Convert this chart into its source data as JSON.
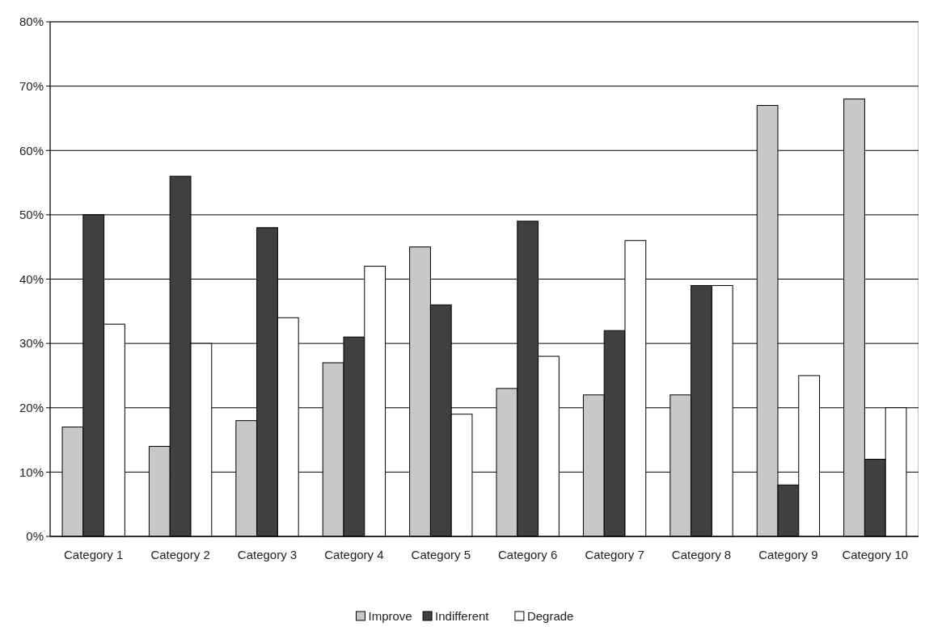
{
  "chart_data": {
    "type": "bar",
    "categories": [
      "Category 1",
      "Category 2",
      "Category 3",
      "Category 4",
      "Category 5",
      "Category 6",
      "Category 7",
      "Category 8",
      "Category 9",
      "Category 10"
    ],
    "series": [
      {
        "name": "Improve",
        "color": "#c8c8c8",
        "values": [
          17,
          14,
          18,
          27,
          45,
          23,
          22,
          22,
          67,
          68
        ]
      },
      {
        "name": "Indifferent",
        "color": "#404040",
        "values": [
          50,
          56,
          48,
          31,
          36,
          49,
          32,
          39,
          8,
          12
        ]
      },
      {
        "name": "Degrade",
        "color": "#ffffff",
        "values": [
          33,
          30,
          34,
          42,
          19,
          28,
          46,
          39,
          25,
          20
        ]
      }
    ],
    "ylim": [
      0,
      80
    ],
    "yticks": [
      {
        "value": 0,
        "label": "0%"
      },
      {
        "value": 10,
        "label": "10%"
      },
      {
        "value": 20,
        "label": "20%"
      },
      {
        "value": 30,
        "label": "30%"
      },
      {
        "value": 40,
        "label": "40%"
      },
      {
        "value": 50,
        "label": "50%"
      },
      {
        "value": 60,
        "label": "60%"
      },
      {
        "value": 70,
        "label": "70%"
      },
      {
        "value": 80,
        "label": "80%"
      }
    ],
    "grid": "y",
    "legend": "bottom"
  }
}
